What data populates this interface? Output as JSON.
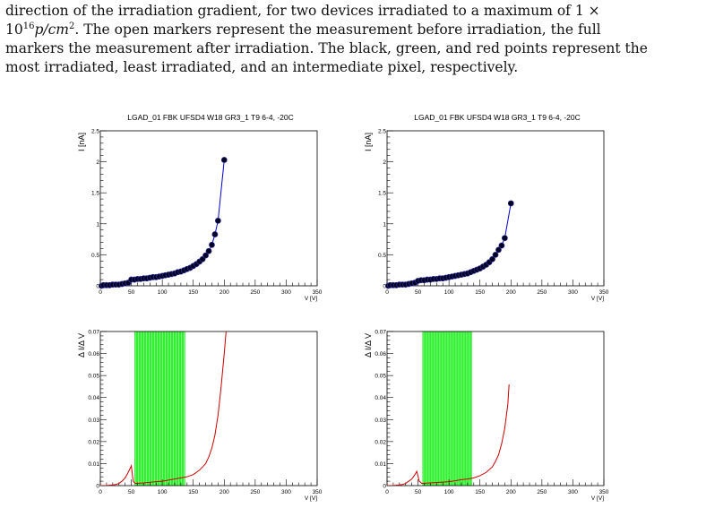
{
  "caption": {
    "l1": "direction of the irradiation gradient, for two devices irradiated to a maximum of 1 ×",
    "l2a": "10",
    "l2sup": "16",
    "l2b": "p/cm",
    "l2sup2": "2",
    "l2c": ". The open markers represent the measurement before irradiation, the full",
    "l3": "markers the measurement after irradiation. The black, green, and red points represent the",
    "l4": "most irradiated, least irradiated, and an intermediate pixel, respectively."
  },
  "colors": {
    "iv_curve": "#0000cc",
    "iv_marker": "#000022",
    "deriv_curve": "#cc0000",
    "band": "#33ee33"
  },
  "chart_data": [
    {
      "type": "scatter",
      "title": "LGAD_01 FBK UFSD4 W18 GR3_1 T9 6-4, -20C",
      "xlabel": "V [V]",
      "ylabel": "I [nA]",
      "xlim": [
        0,
        350
      ],
      "ylim": [
        0,
        2.5
      ],
      "xticks": [
        "0",
        "50",
        "100",
        "150",
        "200",
        "250",
        "300",
        "350"
      ],
      "yticks": [
        "0",
        "0.5",
        "1",
        "1.5",
        "2",
        "2.5"
      ],
      "points": [
        [
          2,
          0
        ],
        [
          5,
          0.01
        ],
        [
          10,
          0.01
        ],
        [
          15,
          0.01
        ],
        [
          20,
          0.02
        ],
        [
          25,
          0.02
        ],
        [
          30,
          0.02
        ],
        [
          35,
          0.03
        ],
        [
          40,
          0.04
        ],
        [
          45,
          0.05
        ],
        [
          50,
          0.1
        ],
        [
          55,
          0.1
        ],
        [
          60,
          0.11
        ],
        [
          65,
          0.11
        ],
        [
          70,
          0.12
        ],
        [
          75,
          0.12
        ],
        [
          80,
          0.13
        ],
        [
          85,
          0.14
        ],
        [
          90,
          0.14
        ],
        [
          95,
          0.15
        ],
        [
          100,
          0.16
        ],
        [
          105,
          0.17
        ],
        [
          110,
          0.18
        ],
        [
          115,
          0.19
        ],
        [
          120,
          0.2
        ],
        [
          125,
          0.22
        ],
        [
          130,
          0.23
        ],
        [
          135,
          0.25
        ],
        [
          140,
          0.27
        ],
        [
          145,
          0.29
        ],
        [
          150,
          0.32
        ],
        [
          155,
          0.35
        ],
        [
          160,
          0.39
        ],
        [
          165,
          0.43
        ],
        [
          170,
          0.49
        ],
        [
          175,
          0.56
        ],
        [
          180,
          0.66
        ],
        [
          185,
          0.83
        ],
        [
          190,
          1.05
        ],
        [
          200,
          2.03
        ]
      ]
    },
    {
      "type": "scatter",
      "title": "LGAD_01 FBK UFSD4 W18 GR3_1 T9 6-4, -20C",
      "xlabel": "V [V]",
      "ylabel": "I [nA]",
      "xlim": [
        0,
        350
      ],
      "ylim": [
        0,
        2.5
      ],
      "xticks": [
        "0",
        "50",
        "100",
        "150",
        "200",
        "250",
        "300",
        "350"
      ],
      "yticks": [
        "0",
        "0.5",
        "1",
        "1.5",
        "2",
        "2.5"
      ],
      "points": [
        [
          2,
          0
        ],
        [
          5,
          0.01
        ],
        [
          10,
          0.01
        ],
        [
          15,
          0.01
        ],
        [
          20,
          0.02
        ],
        [
          25,
          0.02
        ],
        [
          30,
          0.02
        ],
        [
          35,
          0.03
        ],
        [
          40,
          0.04
        ],
        [
          45,
          0.05
        ],
        [
          50,
          0.08
        ],
        [
          55,
          0.09
        ],
        [
          60,
          0.09
        ],
        [
          65,
          0.1
        ],
        [
          70,
          0.1
        ],
        [
          75,
          0.11
        ],
        [
          80,
          0.11
        ],
        [
          85,
          0.12
        ],
        [
          90,
          0.12
        ],
        [
          95,
          0.13
        ],
        [
          100,
          0.14
        ],
        [
          105,
          0.15
        ],
        [
          110,
          0.16
        ],
        [
          115,
          0.17
        ],
        [
          120,
          0.18
        ],
        [
          125,
          0.19
        ],
        [
          130,
          0.2
        ],
        [
          135,
          0.22
        ],
        [
          140,
          0.24
        ],
        [
          145,
          0.26
        ],
        [
          150,
          0.28
        ],
        [
          155,
          0.31
        ],
        [
          160,
          0.34
        ],
        [
          165,
          0.38
        ],
        [
          170,
          0.43
        ],
        [
          175,
          0.5
        ],
        [
          180,
          0.58
        ],
        [
          185,
          0.65
        ],
        [
          190,
          0.77
        ],
        [
          200,
          1.33
        ]
      ]
    },
    {
      "type": "line",
      "title": "",
      "xlabel": "V [V]",
      "ylabel": "Δ I/Δ V",
      "xlim": [
        0,
        350
      ],
      "ylim": [
        0,
        0.07
      ],
      "xticks": [
        "0",
        "50",
        "100",
        "150",
        "200",
        "250",
        "300",
        "350"
      ],
      "yticks": [
        "0",
        "0.01",
        "0.02",
        "0.03",
        "0.04",
        "0.05",
        "0.06",
        "0.07"
      ],
      "band": [
        55,
        137
      ],
      "series": [
        {
          "x": [
            0,
            5,
            10,
            15,
            20,
            25,
            30,
            35,
            40,
            45,
            50,
            53,
            56,
            60,
            70,
            80,
            90,
            100,
            110,
            120,
            130,
            140,
            150,
            160,
            170,
            175,
            180,
            185,
            190,
            195,
            200,
            203
          ],
          "y": [
            0,
            0,
            0,
            0.0002,
            0.0003,
            0.0005,
            0.001,
            0.002,
            0.0035,
            0.006,
            0.009,
            0.002,
            0.001,
            0.001,
            0.0012,
            0.0015,
            0.0018,
            0.002,
            0.0025,
            0.003,
            0.0035,
            0.004,
            0.005,
            0.007,
            0.01,
            0.013,
            0.017,
            0.023,
            0.032,
            0.045,
            0.06,
            0.07
          ]
        }
      ]
    },
    {
      "type": "line",
      "title": "",
      "xlabel": "V [V]",
      "ylabel": "Δ I/Δ V",
      "xlim": [
        0,
        350
      ],
      "ylim": [
        0,
        0.07
      ],
      "xticks": [
        "0",
        "50",
        "100",
        "150",
        "200",
        "250",
        "300",
        "350"
      ],
      "yticks": [
        "0",
        "0.01",
        "0.02",
        "0.03",
        "0.04",
        "0.05",
        "0.06",
        "0.07"
      ],
      "band": [
        57,
        137
      ],
      "series": [
        {
          "x": [
            0,
            5,
            10,
            15,
            20,
            25,
            30,
            35,
            40,
            45,
            48,
            52,
            56,
            60,
            70,
            80,
            90,
            100,
            110,
            120,
            130,
            140,
            150,
            160,
            170,
            175,
            180,
            185,
            190,
            195,
            197
          ],
          "y": [
            0,
            0,
            0,
            0.0002,
            0.0003,
            0.0005,
            0.001,
            0.002,
            0.003,
            0.005,
            0.0065,
            0.002,
            0.001,
            0.001,
            0.0012,
            0.0014,
            0.0016,
            0.0018,
            0.0022,
            0.0027,
            0.003,
            0.0035,
            0.0045,
            0.006,
            0.0085,
            0.011,
            0.014,
            0.019,
            0.026,
            0.037,
            0.046
          ]
        }
      ]
    }
  ]
}
